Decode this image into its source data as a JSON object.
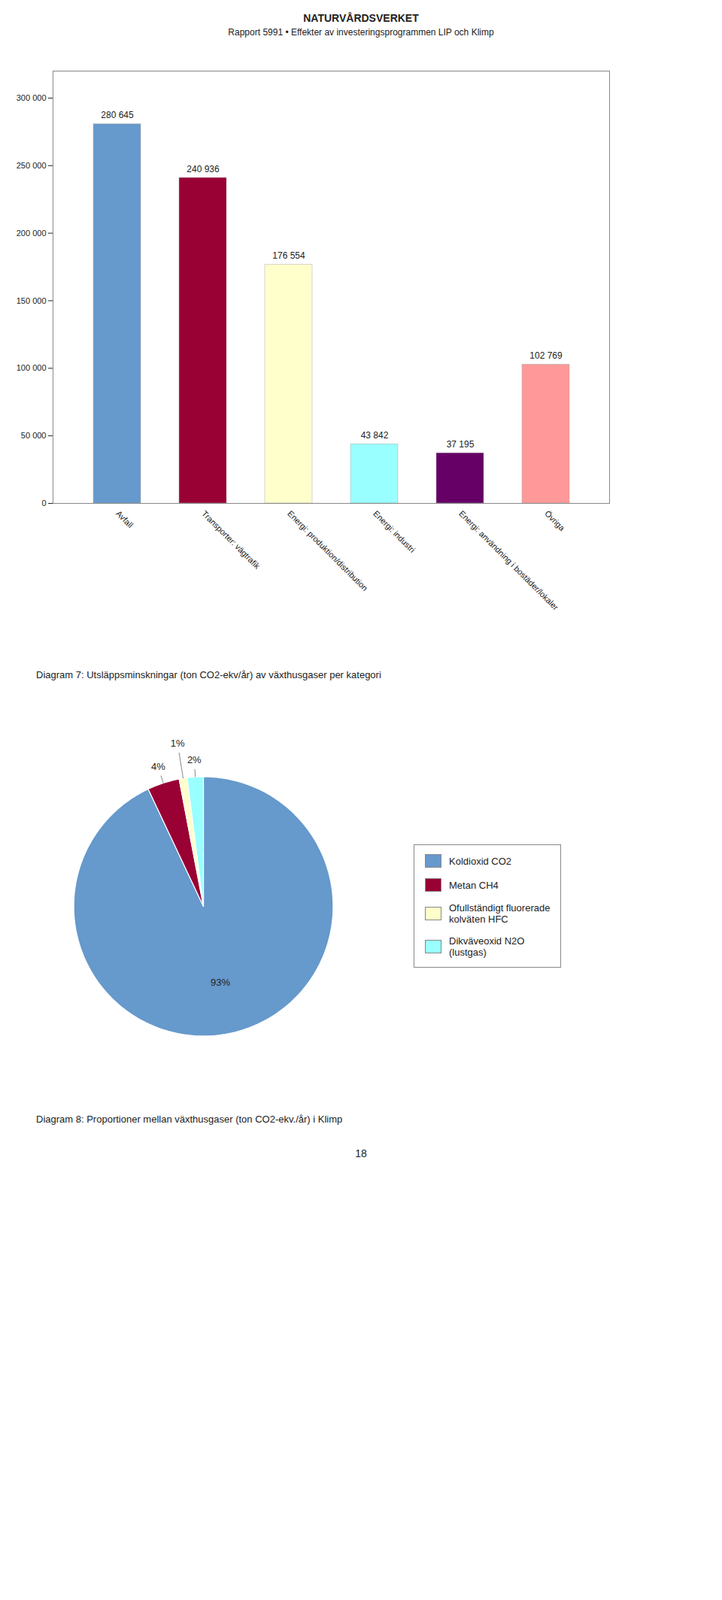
{
  "title": "NATURVÅRDSVERKET",
  "subtitle": "Rapport 5991 • Effekter av investeringsprogrammen LIP och Klimp",
  "annotations": [
    "18"
  ],
  "chart_data": [
    {
      "type": "bar",
      "caption": "Diagram 7: Utsläppsminskningar (ton CO2-ekv/år) av växthusgaser per kategori",
      "categories": [
        "Avfall",
        "Transporter: vägtrafik",
        "Energi: produktion/distribution",
        "Energi: industri",
        "Energi: användning i bostäder/lokaler",
        "Övriga"
      ],
      "values": [
        280645,
        240936,
        176554,
        43842,
        37195,
        102769
      ],
      "value_labels": [
        "280 645",
        "240 936",
        "176 554",
        "43 842",
        "37 195",
        "102 769"
      ],
      "colors": [
        "#6699cc",
        "#990033",
        "#ffffcc",
        "#99ffff",
        "#660066",
        "#ff9999"
      ],
      "data_labels": true,
      "ylim": [
        0,
        320000
      ],
      "yticks": [
        0,
        {
          "value": 50000,
          "label": "50 000"
        },
        {
          "value": 100000,
          "label": "100 000"
        },
        {
          "value": 150000,
          "label": "150 000"
        },
        {
          "value": 200000,
          "label": "200 000"
        },
        {
          "value": 250000,
          "label": "250 000"
        },
        {
          "value": 300000,
          "label": "300 000"
        }
      ]
    },
    {
      "type": "pie",
      "caption": "Diagram 8: Proportioner mellan växthusgaser (ton CO2-ekv./år) i Klimp",
      "categories": [
        "Koldioxid CO2",
        "Metan CH4",
        "Ofullständigt fluorerade\nkolväten HFC",
        "Dikväveoxid N2O\n(lustgas)"
      ],
      "values": [
        93,
        4,
        1,
        2
      ],
      "value_labels": [
        "93%",
        "4%",
        "1%",
        "2%"
      ],
      "colors": [
        "#6699cc",
        "#990033",
        "#ffffcc",
        "#99ffff"
      ],
      "data_labels": true,
      "legend": "right"
    }
  ]
}
